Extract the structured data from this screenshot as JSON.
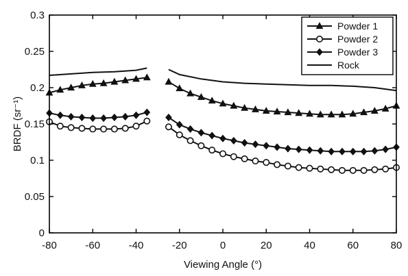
{
  "chart_data": {
    "type": "line",
    "title": "",
    "xlabel": "Viewing Angle (°)",
    "ylabel": "BRDF (sr⁻¹)",
    "xlim": [
      -80,
      80
    ],
    "ylim": [
      0,
      0.3
    ],
    "xticks": [
      "-80",
      "-60",
      "-40",
      "-20",
      "0",
      "20",
      "40",
      "60",
      "80"
    ],
    "yticks": [
      "0",
      "0.05",
      "0.1",
      "0.15",
      "0.2",
      "0.25",
      "0.3"
    ],
    "xtick_values": [
      -80,
      -60,
      -40,
      -20,
      0,
      20,
      40,
      60,
      80
    ],
    "ytick_values": [
      0,
      0.05,
      0.1,
      0.15,
      0.2,
      0.25,
      0.3
    ],
    "grid": false,
    "legend_position": "top-right",
    "series": [
      {
        "name": "Powder 1",
        "marker": "filled-triangle",
        "segments": [
          {
            "x": [
              -80,
              -75,
              -70,
              -65,
              -60,
              -55,
              -50,
              -45,
              -40,
              -35
            ],
            "y": [
              0.193,
              0.197,
              0.2,
              0.203,
              0.205,
              0.206,
              0.208,
              0.21,
              0.212,
              0.214
            ]
          },
          {
            "x": [
              -25,
              -20,
              -15,
              -10,
              -5,
              0,
              5,
              10,
              15,
              20,
              25,
              30,
              35,
              40,
              45,
              50,
              55,
              60,
              65,
              70,
              75,
              80
            ],
            "y": [
              0.208,
              0.199,
              0.192,
              0.187,
              0.182,
              0.178,
              0.175,
              0.172,
              0.17,
              0.168,
              0.167,
              0.166,
              0.165,
              0.164,
              0.163,
              0.163,
              0.163,
              0.164,
              0.166,
              0.168,
              0.171,
              0.175
            ]
          }
        ]
      },
      {
        "name": "Powder 2",
        "marker": "open-circle",
        "segments": [
          {
            "x": [
              -80,
              -75,
              -70,
              -65,
              -60,
              -55,
              -50,
              -45,
              -40,
              -35
            ],
            "y": [
              0.153,
              0.147,
              0.145,
              0.144,
              0.143,
              0.143,
              0.143,
              0.144,
              0.147,
              0.154
            ]
          },
          {
            "x": [
              -25,
              -20,
              -15,
              -10,
              -5,
              0,
              5,
              10,
              15,
              20,
              25,
              30,
              35,
              40,
              45,
              50,
              55,
              60,
              65,
              70,
              75,
              80
            ],
            "y": [
              0.146,
              0.135,
              0.127,
              0.12,
              0.114,
              0.109,
              0.105,
              0.102,
              0.099,
              0.097,
              0.094,
              0.092,
              0.09,
              0.089,
              0.088,
              0.087,
              0.086,
              0.086,
              0.086,
              0.087,
              0.088,
              0.09
            ]
          }
        ]
      },
      {
        "name": "Powder 3",
        "marker": "filled-diamond",
        "segments": [
          {
            "x": [
              -80,
              -75,
              -70,
              -65,
              -60,
              -55,
              -50,
              -45,
              -40,
              -35
            ],
            "y": [
              0.165,
              0.162,
              0.16,
              0.159,
              0.158,
              0.158,
              0.159,
              0.16,
              0.162,
              0.166
            ]
          },
          {
            "x": [
              -25,
              -20,
              -15,
              -10,
              -5,
              0,
              5,
              10,
              15,
              20,
              25,
              30,
              35,
              40,
              45,
              50,
              55,
              60,
              65,
              70,
              75,
              80
            ],
            "y": [
              0.159,
              0.149,
              0.143,
              0.138,
              0.134,
              0.13,
              0.127,
              0.124,
              0.122,
              0.12,
              0.118,
              0.116,
              0.115,
              0.114,
              0.113,
              0.112,
              0.112,
              0.112,
              0.112,
              0.113,
              0.115,
              0.118
            ]
          }
        ]
      },
      {
        "name": "Rock",
        "marker": "none",
        "segments": [
          {
            "x": [
              -80,
              -70,
              -60,
              -50,
              -40,
              -35
            ],
            "y": [
              0.217,
              0.219,
              0.221,
              0.222,
              0.224,
              0.227
            ]
          },
          {
            "x": [
              -25,
              -20,
              -10,
              0,
              10,
              20,
              30,
              40,
              50,
              60,
              70,
              80
            ],
            "y": [
              0.225,
              0.218,
              0.212,
              0.208,
              0.206,
              0.205,
              0.204,
              0.203,
              0.203,
              0.202,
              0.2,
              0.196
            ]
          }
        ]
      }
    ]
  }
}
